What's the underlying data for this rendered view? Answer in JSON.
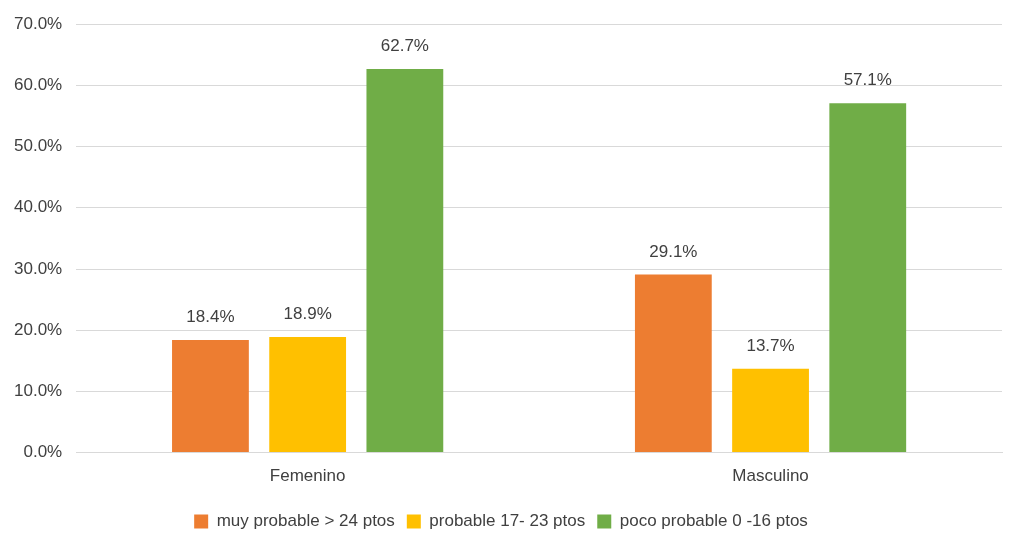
{
  "chart_data": {
    "type": "bar",
    "categories": [
      "Femenino",
      "Masculino"
    ],
    "series": [
      {
        "name": "muy probable > 24 ptos",
        "color": "#ed7d31",
        "values": [
          18.4,
          29.1
        ],
        "value_labels": [
          "18.4%",
          "29.1%"
        ]
      },
      {
        "name": "probable 17- 23 ptos",
        "color": "#ffc000",
        "values": [
          18.9,
          13.7
        ],
        "value_labels": [
          "18.9%",
          "13.7%"
        ]
      },
      {
        "name": "poco probable 0 -16 ptos",
        "color": "#70ad47",
        "values": [
          62.7,
          57.1
        ],
        "value_labels": [
          "62.7%",
          "57.1%"
        ]
      }
    ],
    "ylim": [
      0,
      70
    ],
    "yticks": [
      {
        "value": 0,
        "label": "0.0%"
      },
      {
        "value": 10,
        "label": "10.0%"
      },
      {
        "value": 20,
        "label": "20.0%"
      },
      {
        "value": 30,
        "label": "30.0%"
      },
      {
        "value": 40,
        "label": "40.0%"
      },
      {
        "value": 50,
        "label": "50.0%"
      },
      {
        "value": 60,
        "label": "60.0%"
      },
      {
        "value": 70,
        "label": "70.0%"
      }
    ],
    "grid": "y",
    "legend": "bottom"
  }
}
